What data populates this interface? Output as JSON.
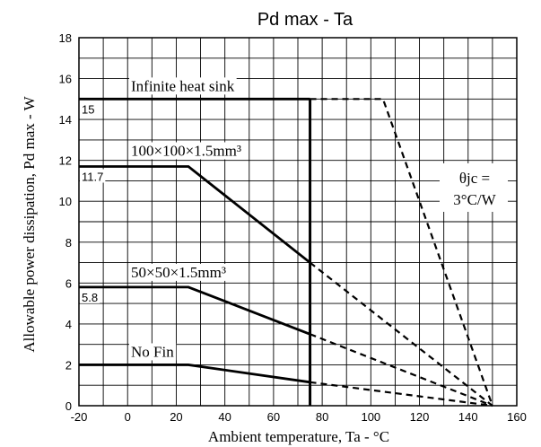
{
  "chart_data": {
    "type": "line",
    "title": "Pd max - Ta",
    "xlabel": "Ambient temperature,  Ta - °C",
    "ylabel": "Allowable power dissipation,  Pd max - W",
    "xlim": [
      -20,
      160
    ],
    "ylim": [
      0,
      18
    ],
    "xticks": [
      "-20",
      "0",
      "20",
      "40",
      "60",
      "80",
      "100",
      "120",
      "140",
      "160"
    ],
    "yticks": [
      "0",
      "2",
      "4",
      "6",
      "8",
      "10",
      "12",
      "14",
      "16",
      "18"
    ],
    "grid": true,
    "series": [
      {
        "name": "Infinite heat sink",
        "x": [
          -20,
          75
        ],
        "y": [
          15,
          15
        ],
        "value_label": "15"
      },
      {
        "name": "100×100×1.5mm³",
        "x": [
          -20,
          25,
          75
        ],
        "y": [
          11.7,
          11.7,
          7.0
        ],
        "value_label": "11.7"
      },
      {
        "name": "50×50×1.5mm³",
        "x": [
          -20,
          25,
          75
        ],
        "y": [
          5.8,
          5.8,
          3.5
        ],
        "value_label": "5.8"
      },
      {
        "name": "No Fin",
        "x": [
          -20,
          25,
          75
        ],
        "y": [
          2,
          2,
          1.15
        ]
      }
    ],
    "dashed_extensions": [
      {
        "x": [
          75,
          105,
          150
        ],
        "y": [
          15,
          15,
          0
        ]
      },
      {
        "x": [
          75,
          150
        ],
        "y": [
          7.0,
          0
        ]
      },
      {
        "x": [
          75,
          150
        ],
        "y": [
          3.5,
          0
        ]
      },
      {
        "x": [
          75,
          150
        ],
        "y": [
          1.15,
          0
        ]
      }
    ],
    "vertical_limit": {
      "x": 75,
      "y": [
        0,
        15
      ]
    },
    "annotation": {
      "line1": "θjc =",
      "line2": "3°C/W"
    }
  },
  "colors": {
    "line": "#000000",
    "grid": "#000000",
    "background": "#ffffff"
  }
}
